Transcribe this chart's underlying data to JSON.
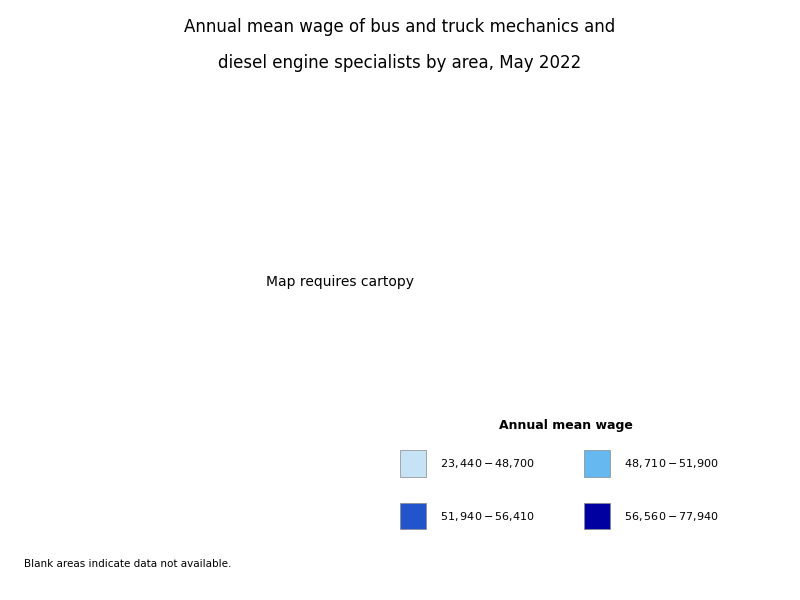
{
  "title_line1": "Annual mean wage of bus and truck mechanics and",
  "title_line2": "diesel engine specialists by area, May 2022",
  "legend_title": "Annual mean wage",
  "legend_labels": [
    "$23,440 - $48,700",
    "$48,710 - $51,900",
    "$51,940 - $56,410",
    "$56,560 - $77,940"
  ],
  "legend_colors": [
    "#c6e2f5",
    "#66b8f0",
    "#2255cc",
    "#0000a0"
  ],
  "blank_note": "Blank areas indicate data not available.",
  "background_color": "#ffffff",
  "title_fontsize": 12,
  "legend_title_fontsize": 9,
  "legend_fontsize": 8
}
